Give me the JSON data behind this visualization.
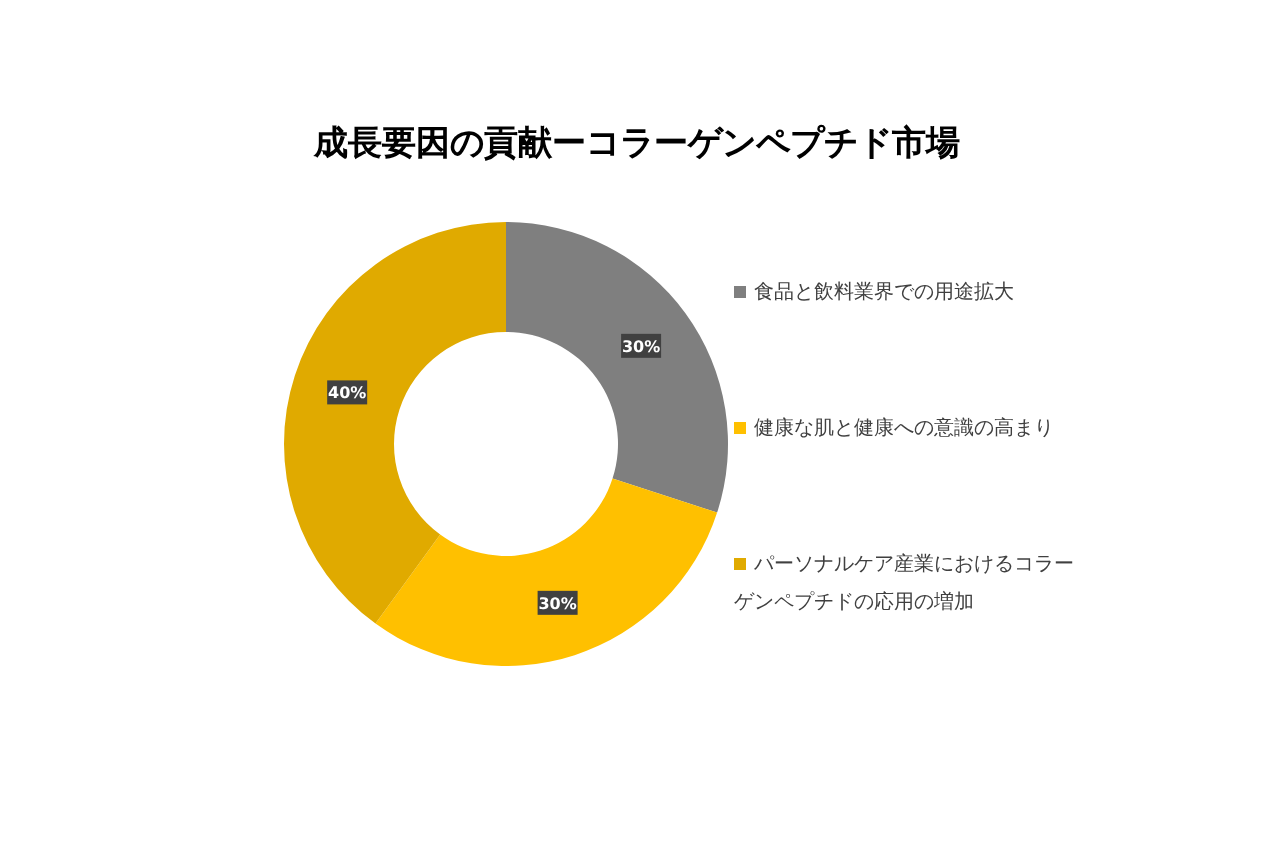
{
  "chart_data": {
    "type": "donut",
    "title": "成長要因の貢献ーコラーゲンペプチド市場",
    "categories": [
      "食品と飲料業界での用途拡大",
      "健康な肌と健康への意識の高まり",
      "パーソナルケア産業におけるコラーゲンペプチドの応用の増加"
    ],
    "values": [
      30,
      30,
      40
    ],
    "colors": [
      "#7f7f7f",
      "#ffc000",
      "#e0aa00"
    ],
    "value_labels": [
      "30%",
      "30%",
      "40%"
    ],
    "legend": "right"
  }
}
